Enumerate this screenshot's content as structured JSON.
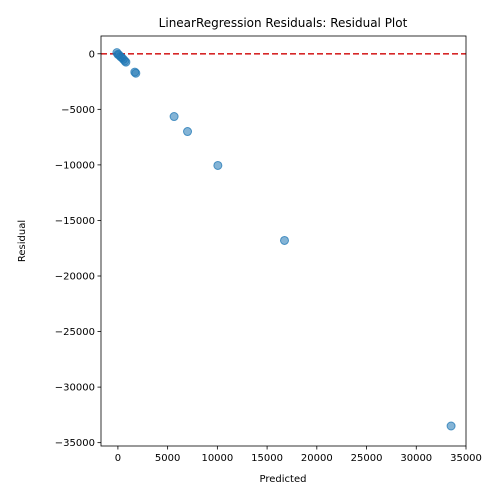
{
  "chart_data": {
    "type": "scatter",
    "title": "LinearRegression Residuals: Residual Plot",
    "xlabel": "Predicted",
    "ylabel": "Residual",
    "xlim": [
      -1700,
      35000
    ],
    "ylim": [
      -35300,
      1600
    ],
    "xticks": [
      0,
      5000,
      10000,
      15000,
      20000,
      25000,
      30000,
      35000
    ],
    "yticks": [
      0,
      -5000,
      -10000,
      -15000,
      -20000,
      -25000,
      -30000,
      -35000
    ],
    "grid": false,
    "reference_line": {
      "y": 0,
      "color": "#d62728",
      "style": "dashed"
    },
    "point_color": "#1f77b4",
    "points": [
      {
        "x": -100,
        "y": 100
      },
      {
        "x": 0,
        "y": -50
      },
      {
        "x": 100,
        "y": -100
      },
      {
        "x": 250,
        "y": -250
      },
      {
        "x": 400,
        "y": -350
      },
      {
        "x": 550,
        "y": -500
      },
      {
        "x": 700,
        "y": -650
      },
      {
        "x": 800,
        "y": -750
      },
      {
        "x": 1700,
        "y": -1650
      },
      {
        "x": 1800,
        "y": -1750
      },
      {
        "x": 5650,
        "y": -5650
      },
      {
        "x": 7000,
        "y": -7000
      },
      {
        "x": 10050,
        "y": -10050
      },
      {
        "x": 16750,
        "y": -16800
      },
      {
        "x": 33500,
        "y": -33500
      }
    ]
  }
}
